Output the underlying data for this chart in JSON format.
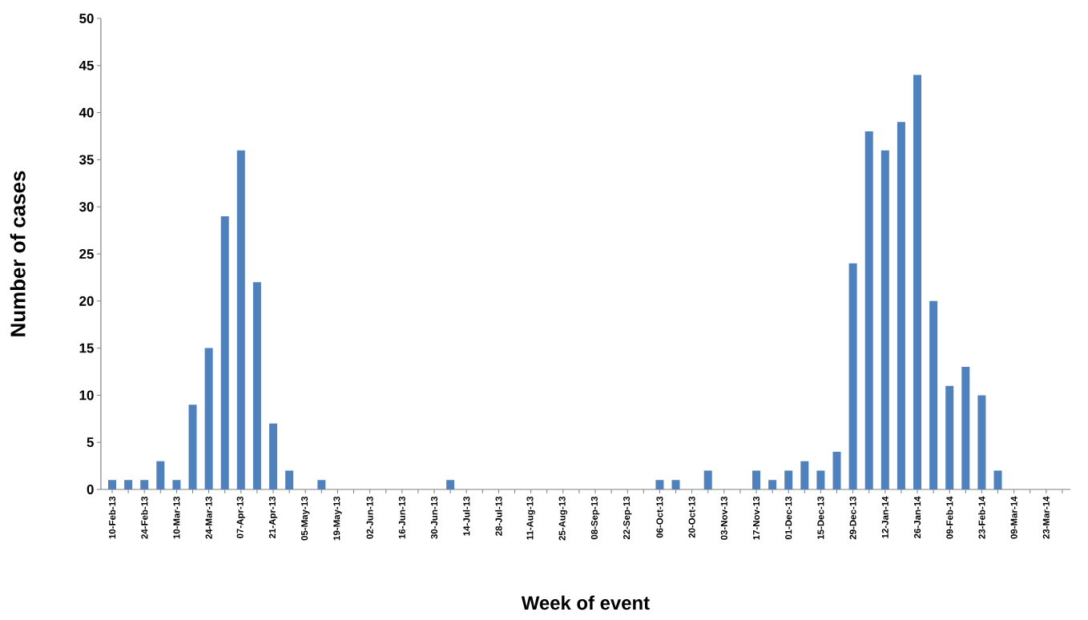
{
  "chart_data": {
    "type": "bar",
    "xlabel": "Week of event",
    "ylabel": "Number of cases",
    "color": "#4f81bd",
    "categories": [
      "10-Feb-13",
      null,
      "24-Feb-13",
      null,
      "10-Mar-13",
      null,
      "24-Mar-13",
      null,
      "07-Apr-13",
      null,
      "21-Apr-13",
      null,
      "05-May-13",
      null,
      "19-May-13",
      null,
      "02-Jun-13",
      null,
      "16-Jun-13",
      null,
      "30-Jun-13",
      null,
      "14-Jul-13",
      null,
      "28-Jul-13",
      null,
      "11-Aug-13",
      null,
      "25-Aug-13",
      null,
      "08-Sep-13",
      null,
      "22-Sep-13",
      null,
      "06-Oct-13",
      null,
      "20-Oct-13",
      null,
      "03-Nov-13",
      null,
      "17-Nov-13",
      null,
      "01-Dec-13",
      null,
      "15-Dec-13",
      null,
      "29-Dec-13",
      null,
      "12-Jan-14",
      null,
      "26-Jan-14",
      null,
      "09-Feb-14",
      null,
      "23-Feb-14",
      null,
      "09-Mar-14",
      null,
      "23-Mar-14",
      null
    ],
    "values": [
      1,
      1,
      1,
      3,
      1,
      9,
      15,
      29,
      36,
      22,
      7,
      2,
      0,
      1,
      0,
      0,
      0,
      0,
      0,
      0,
      0,
      1,
      0,
      0,
      0,
      0,
      0,
      0,
      0,
      0,
      0,
      0,
      0,
      0,
      1,
      1,
      0,
      2,
      0,
      0,
      2,
      1,
      2,
      3,
      2,
      4,
      24,
      38,
      36,
      39,
      44,
      20,
      11,
      13,
      10,
      2,
      0,
      0,
      0,
      0
    ],
    "ylim": [
      0,
      50
    ],
    "yticks": [
      0,
      5,
      10,
      15,
      20,
      25,
      30,
      35,
      40,
      45,
      50
    ],
    "grid": false
  }
}
